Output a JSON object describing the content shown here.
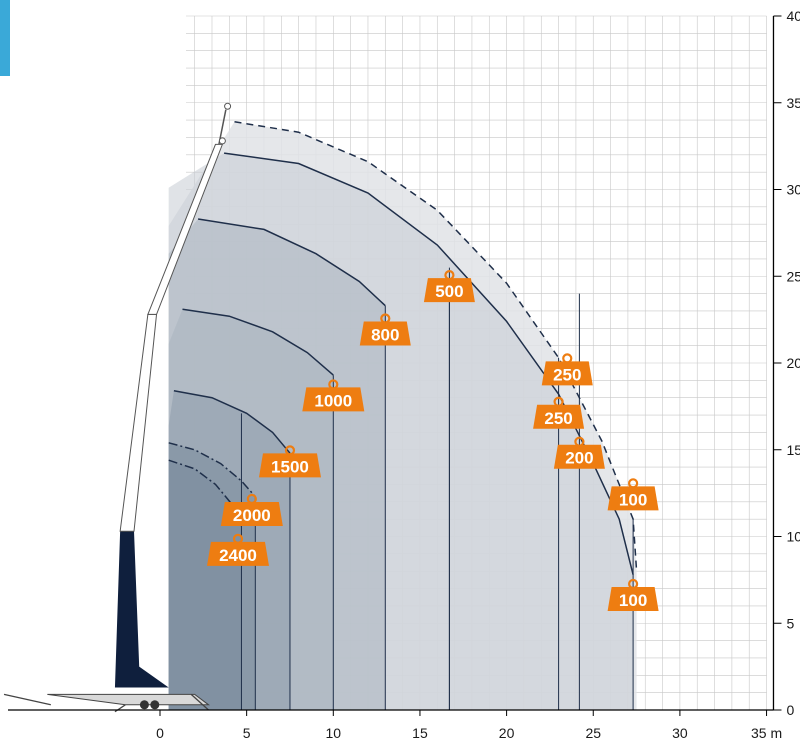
{
  "colors": {
    "outer_envelope_fill": "#e1e3e6",
    "shade_light": "#c6ccd4",
    "shade_mid": "#aab4bf",
    "shade_dark": "#8e9cab",
    "shade_darkest": "#7a8b9c",
    "curve_line": "#1f2f4a",
    "grid": "#c8c8c8",
    "badge": "#ee7d11",
    "crane_dark": "#0f1f3d",
    "accent": "#3aa9d8"
  },
  "chart_data": {
    "type": "line",
    "title": "",
    "xlabel": "",
    "ylabel": "",
    "x_unit": "m",
    "xlim": [
      -9,
      35
    ],
    "ylim": [
      0,
      40
    ],
    "grid": true,
    "x_ticks": [
      0,
      5,
      10,
      15,
      20,
      25,
      30,
      35
    ],
    "y_ticks": [
      0,
      5,
      10,
      15,
      20,
      25,
      30,
      35,
      40
    ],
    "x_tick_labels": [
      "0",
      "5",
      "10",
      "15",
      "20",
      "25",
      "30",
      "35 m"
    ],
    "y_tick_labels": [
      "0",
      "5",
      "10",
      "15",
      "20",
      "25",
      "30",
      "35",
      "40"
    ],
    "series": [
      {
        "load": "100",
        "style": "dashed",
        "points": [
          [
            4.3,
            33.9
          ],
          [
            8,
            33.3
          ],
          [
            12,
            31.6
          ],
          [
            16,
            28.8
          ],
          [
            20,
            24.6
          ],
          [
            23,
            20.3
          ],
          [
            25.5,
            15.5
          ],
          [
            27.3,
            11
          ],
          [
            27.5,
            8
          ]
        ]
      },
      {
        "load": "100",
        "style": "solid",
        "drop_x": 27.3,
        "points": [
          [
            3.7,
            32.1
          ],
          [
            8,
            31.5
          ],
          [
            12,
            29.8
          ],
          [
            16,
            26.8
          ],
          [
            20,
            22.4
          ],
          [
            23,
            18.2
          ],
          [
            25,
            14.2
          ],
          [
            26.5,
            11
          ],
          [
            27.3,
            7.8
          ]
        ]
      },
      {
        "load": "800",
        "style": "solid",
        "drop_x": 13.0,
        "points": [
          [
            2.2,
            28.3
          ],
          [
            6,
            27.7
          ],
          [
            9,
            26.3
          ],
          [
            11.5,
            24.7
          ],
          [
            13,
            23.3
          ]
        ]
      },
      {
        "load": "1000",
        "style": "solid",
        "drop_x": 10.0,
        "points": [
          [
            1.3,
            23.1
          ],
          [
            4,
            22.7
          ],
          [
            6.5,
            21.8
          ],
          [
            8.5,
            20.6
          ],
          [
            10,
            19.3
          ]
        ]
      },
      {
        "load": "1500",
        "style": "solid",
        "drop_x": 7.5,
        "points": [
          [
            0.8,
            18.4
          ],
          [
            3,
            18
          ],
          [
            5,
            17.1
          ],
          [
            6.5,
            16
          ],
          [
            7.5,
            14.8
          ]
        ]
      },
      {
        "load": "2000",
        "style": "dashdot",
        "drop_x": 5.5,
        "points": [
          [
            0.5,
            15.4
          ],
          [
            2,
            15
          ],
          [
            3.5,
            14.2
          ],
          [
            4.7,
            13.2
          ],
          [
            5.5,
            12.3
          ]
        ]
      },
      {
        "load": "2400",
        "style": "dashdot",
        "drop_x": 4.7,
        "points": [
          [
            0.5,
            14.4
          ],
          [
            2,
            13.9
          ],
          [
            3.2,
            13
          ],
          [
            4.2,
            11.8
          ],
          [
            4.7,
            10.6
          ]
        ]
      }
    ],
    "load_markers": [
      {
        "label": "2400",
        "x": 4.5,
        "y": 9.0
      },
      {
        "label": "2000",
        "x": 5.3,
        "y": 11.3
      },
      {
        "label": "1500",
        "x": 7.5,
        "y": 14.1
      },
      {
        "label": "1000",
        "x": 10.0,
        "y": 17.9
      },
      {
        "label": "800",
        "x": 13.0,
        "y": 21.7
      },
      {
        "label": "500",
        "x": 16.7,
        "y": 24.2
      },
      {
        "label": "250",
        "x": 23.5,
        "y": 19.4
      },
      {
        "label": "250",
        "x": 23.0,
        "y": 16.9
      },
      {
        "label": "200",
        "x": 24.2,
        "y": 14.6
      },
      {
        "label": "100",
        "x": 27.3,
        "y": 12.2
      },
      {
        "label": "100",
        "x": 27.3,
        "y": 6.4
      }
    ],
    "vertical_drops": [
      4.7,
      5.5,
      7.5,
      10.0,
      13.0,
      16.7,
      23.0,
      24.2,
      27.3
    ]
  }
}
